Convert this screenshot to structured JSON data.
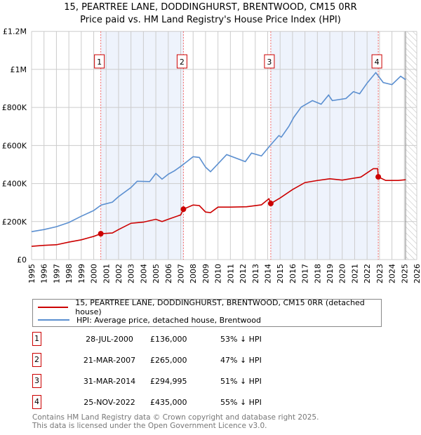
{
  "chart_data": {
    "type": "line",
    "title": "15, PEARTREE LANE, DODDINGHURST, BRENTWOOD, CM15 0RR",
    "subtitle": "Price paid vs. HM Land Registry's House Price Index (HPI)",
    "xlim": [
      1995,
      2026
    ],
    "ylim": [
      0,
      1200000
    ],
    "xticks": [
      "1995",
      "1996",
      "1997",
      "1998",
      "1999",
      "2000",
      "2001",
      "2002",
      "2003",
      "2004",
      "2005",
      "2006",
      "2007",
      "2008",
      "2009",
      "2010",
      "2011",
      "2012",
      "2013",
      "2014",
      "2015",
      "2016",
      "2017",
      "2018",
      "2019",
      "2020",
      "2021",
      "2022",
      "2023",
      "2024",
      "2025",
      "2026"
    ],
    "yticks": [
      {
        "v": 0,
        "label": "£0"
      },
      {
        "v": 200000,
        "label": "£200K"
      },
      {
        "v": 400000,
        "label": "£400K"
      },
      {
        "v": 600000,
        "label": "£600K"
      },
      {
        "v": 800000,
        "label": "£800K"
      },
      {
        "v": 1000000,
        "label": "£1M"
      },
      {
        "v": 1200000,
        "label": "£1.2M"
      }
    ],
    "grid": true,
    "series": [
      {
        "name": "15, PEARTREE LANE, DODDINGHURST, BRENTWOOD, CM15 0RR (detached house)",
        "color": "#cc0000",
        "points": [
          [
            1995,
            70000
          ],
          [
            1996,
            75000
          ],
          [
            1997,
            78000
          ],
          [
            1998,
            92000
          ],
          [
            1999,
            104000
          ],
          [
            2000,
            122000
          ],
          [
            2000.57,
            136000
          ],
          [
            2001.5,
            140000
          ],
          [
            2002,
            158000
          ],
          [
            2003,
            191000
          ],
          [
            2004,
            197000
          ],
          [
            2005,
            212000
          ],
          [
            2005.5,
            200000
          ],
          [
            2006,
            212000
          ],
          [
            2007,
            235000
          ],
          [
            2007.22,
            265000
          ],
          [
            2008,
            287000
          ],
          [
            2008.5,
            284000
          ],
          [
            2009,
            250000
          ],
          [
            2009.4,
            247000
          ],
          [
            2010,
            276000
          ],
          [
            2011,
            276000
          ],
          [
            2012.3,
            278000
          ],
          [
            2013.5,
            288000
          ],
          [
            2014.1,
            320000
          ],
          [
            2014.25,
            294995
          ],
          [
            2015,
            324000
          ],
          [
            2016,
            368000
          ],
          [
            2017,
            405000
          ],
          [
            2018,
            416000
          ],
          [
            2019,
            425000
          ],
          [
            2020,
            418000
          ],
          [
            2021.5,
            434000
          ],
          [
            2022.5,
            478000
          ],
          [
            2022.85,
            478000
          ],
          [
            2022.9,
            435000
          ],
          [
            2023.5,
            416000
          ],
          [
            2024.5,
            416000
          ],
          [
            2025.1,
            420000
          ]
        ]
      },
      {
        "name": "HPI: Average price, detached house, Brentwood",
        "color": "#5b8fd0",
        "points": [
          [
            1995,
            147000
          ],
          [
            1996,
            158000
          ],
          [
            1997,
            173000
          ],
          [
            1998,
            195000
          ],
          [
            1999,
            228000
          ],
          [
            2000,
            258000
          ],
          [
            2000.6,
            287000
          ],
          [
            2001.5,
            302000
          ],
          [
            2002,
            331000
          ],
          [
            2003,
            379000
          ],
          [
            2003.5,
            412000
          ],
          [
            2004.5,
            410000
          ],
          [
            2005,
            453000
          ],
          [
            2005.5,
            423000
          ],
          [
            2006,
            449000
          ],
          [
            2006.5,
            467000
          ],
          [
            2007,
            490000
          ],
          [
            2007.5,
            515000
          ],
          [
            2008,
            541000
          ],
          [
            2008.5,
            537000
          ],
          [
            2009,
            486000
          ],
          [
            2009.4,
            462000
          ],
          [
            2010.7,
            552000
          ],
          [
            2012.2,
            515000
          ],
          [
            2012.7,
            560000
          ],
          [
            2013.5,
            545000
          ],
          [
            2014.2,
            600000
          ],
          [
            2014.9,
            652000
          ],
          [
            2015.1,
            644000
          ],
          [
            2015.7,
            700000
          ],
          [
            2016.1,
            748000
          ],
          [
            2016.7,
            802000
          ],
          [
            2017.6,
            836000
          ],
          [
            2018.3,
            817000
          ],
          [
            2018.9,
            865000
          ],
          [
            2019.2,
            836000
          ],
          [
            2020.3,
            847000
          ],
          [
            2020.9,
            883000
          ],
          [
            2021.4,
            872000
          ],
          [
            2022,
            928000
          ],
          [
            2022.7,
            983000
          ],
          [
            2023.3,
            931000
          ],
          [
            2024,
            920000
          ],
          [
            2024.7,
            964000
          ],
          [
            2025.1,
            946000
          ]
        ]
      }
    ],
    "sales": [
      {
        "n": "1",
        "x": 2000.57,
        "v": 136000,
        "date": "28-JUL-2000",
        "price": "£136,000",
        "pct": "53% ↓ HPI"
      },
      {
        "n": "2",
        "x": 2007.22,
        "v": 265000,
        "date": "21-MAR-2007",
        "price": "£265,000",
        "pct": "47% ↓ HPI"
      },
      {
        "n": "3",
        "x": 2014.25,
        "v": 294995,
        "date": "31-MAR-2014",
        "price": "£294,995",
        "pct": "51% ↓ HPI"
      },
      {
        "n": "4",
        "x": 2022.9,
        "v": 435000,
        "date": "25-NOV-2022",
        "price": "£435,000",
        "pct": "55% ↓ HPI"
      }
    ],
    "shaded": [
      [
        2000.57,
        2007.22
      ],
      [
        2014.25,
        2022.9
      ]
    ],
    "forecast_from": 2025.1,
    "legend": "below"
  },
  "footer": [
    "Contains HM Land Registry data © Crown copyright and database right 2025.",
    "This data is licensed under the Open Government Licence v3.0."
  ]
}
